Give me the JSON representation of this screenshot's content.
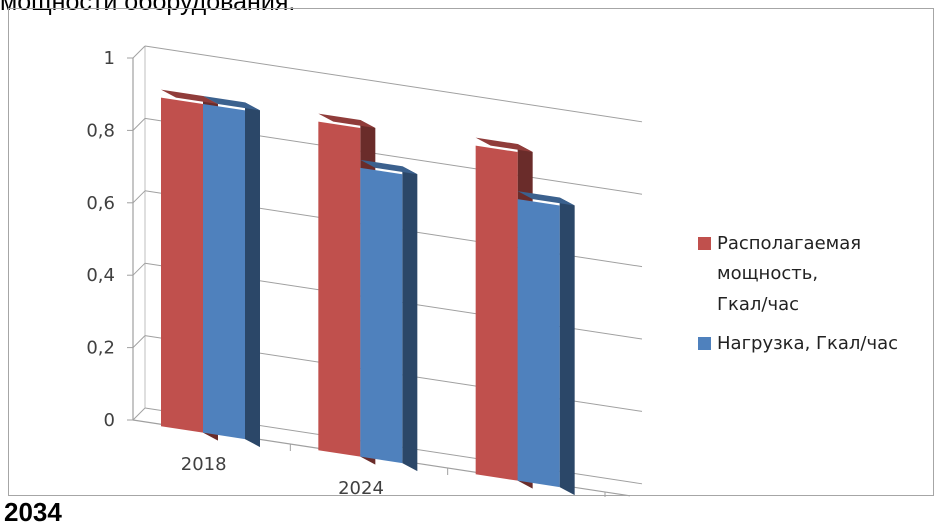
{
  "page": {
    "top_text": "мощности оборудования:",
    "bottom_text": "2034"
  },
  "chart_data": {
    "type": "bar",
    "categories": [
      "2018",
      "2024",
      "2034"
    ],
    "series": [
      {
        "name": "Располагаемая мощность, Гкал/час",
        "values": [
          0.93,
          0.93,
          0.93
        ],
        "color": "#c0504d"
      },
      {
        "name": "Нагрузка, Гкал/час",
        "values": [
          0.93,
          0.82,
          0.8
        ],
        "color": "#4f81bd"
      }
    ],
    "y_ticks": [
      "0",
      "0,2",
      "0,4",
      "0,6",
      "0,8",
      "1"
    ],
    "ylim": [
      0,
      1
    ],
    "grid": true,
    "legend_position": "right",
    "legend_lines": [
      [
        "Располагаемая",
        "мощность,",
        "Гкал/час"
      ],
      [
        "Нагрузка, Гкал/час"
      ]
    ]
  }
}
